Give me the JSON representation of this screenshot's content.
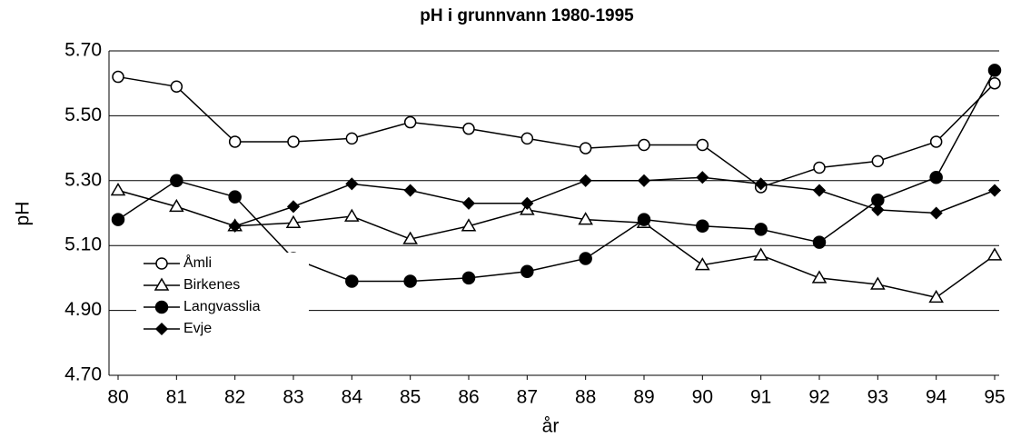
{
  "chart_data": {
    "type": "line",
    "title": "pH i grunnvann 1980-1995",
    "x_label": "år",
    "y_label": "pH",
    "categories": [
      "80",
      "81",
      "82",
      "83",
      "84",
      "85",
      "86",
      "87",
      "88",
      "89",
      "90",
      "91",
      "92",
      "93",
      "94",
      "95"
    ],
    "ylim": [
      4.7,
      5.7
    ],
    "yticks": [
      {
        "value": 4.7,
        "label": "4.70"
      },
      {
        "value": 4.9,
        "label": "4.90"
      },
      {
        "value": 5.1,
        "label": "5.10"
      },
      {
        "value": 5.3,
        "label": "5.30"
      },
      {
        "value": 5.5,
        "label": "5.50"
      },
      {
        "value": 5.7,
        "label": "5.70"
      }
    ],
    "grid": true,
    "legend": "lower-left",
    "series": [
      {
        "name": "Åmli",
        "color": "#000000",
        "marker": "open-circle",
        "values": [
          5.62,
          5.59,
          5.42,
          5.42,
          5.43,
          5.48,
          5.46,
          5.43,
          5.4,
          5.41,
          5.41,
          5.28,
          5.34,
          5.36,
          5.42,
          5.6
        ]
      },
      {
        "name": "Birkenes",
        "color": "#000000",
        "marker": "open-triangle",
        "values": [
          5.27,
          5.22,
          5.16,
          5.17,
          5.19,
          5.12,
          5.16,
          5.21,
          5.18,
          5.17,
          5.04,
          5.07,
          5.0,
          4.98,
          4.94,
          5.07
        ]
      },
      {
        "name": "Langvasslia",
        "color": "#000000",
        "marker": "filled-circle",
        "values": [
          5.18,
          5.3,
          5.25,
          5.06,
          4.99,
          4.99,
          5.0,
          5.02,
          5.06,
          5.18,
          5.16,
          5.15,
          5.11,
          5.24,
          5.31,
          5.64
        ]
      },
      {
        "name": "Evje",
        "color": "#000000",
        "marker": "filled-diamond",
        "values": [
          null,
          null,
          5.16,
          5.22,
          5.29,
          5.27,
          5.23,
          5.23,
          5.3,
          5.3,
          5.31,
          5.29,
          5.27,
          5.21,
          5.2,
          5.27
        ]
      }
    ]
  }
}
